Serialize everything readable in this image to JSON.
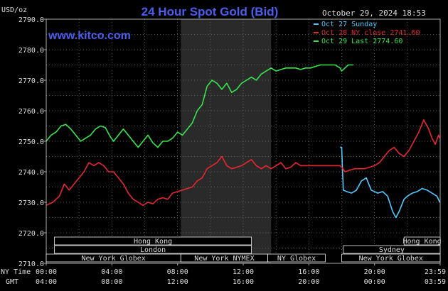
{
  "chart_data": {
    "type": "line",
    "title": "24 Hour Spot Gold (Bid)",
    "watermark": "www.kitco.com",
    "timestamp": "October 29, 2024 18:53",
    "ylabel": "USD/oz",
    "ylim": [
      2710,
      2790
    ],
    "yticks": [
      "2790.0",
      "2780.0",
      "2770.0",
      "2760.0",
      "2750.0",
      "2740.0",
      "2730.0",
      "2720.0",
      "2710.0"
    ],
    "x_row1_label": "NY Time",
    "x_row2_label": "GMT",
    "x_ticks_ny": [
      "00:00",
      "04:00",
      "08:00",
      "12:00",
      "16:00",
      "20:00",
      "23:59"
    ],
    "x_ticks_gmt": [
      "04:00",
      "08:00",
      "12:00",
      "16:00",
      "20:00",
      "00:00",
      "03:59"
    ],
    "shaded_region": {
      "from_hour": 8.2,
      "to_hour": 13.7,
      "color": "#2a2a2a"
    },
    "grid": true,
    "legend_position": "top-right",
    "sessions": [
      {
        "label": "Hong Kong",
        "start": 0.5,
        "end": 12.5
      },
      {
        "label": "Hong Kong",
        "start": 21.8,
        "end": 24
      },
      {
        "label": "London",
        "start": 0.5,
        "end": 12.5
      },
      {
        "label": "Sydney",
        "start": 18.1,
        "end": 24
      },
      {
        "label": "New York Globex",
        "start": 0,
        "end": 8.2
      },
      {
        "label": "New York NYMEX",
        "start": 8.2,
        "end": 13.5
      },
      {
        "label": "NY Globex",
        "start": 13.5,
        "end": 17
      },
      {
        "label": "New York Globex",
        "start": 18,
        "end": 24
      }
    ],
    "series": [
      {
        "name": "Oct 27 Sunday",
        "color": "#4ec9ff",
        "x": [
          17.9,
          18.0,
          18.05,
          18.1,
          18.3,
          18.6,
          18.9,
          19.2,
          19.5,
          19.8,
          20.2,
          20.5,
          20.8,
          21.1,
          21.3,
          21.5,
          21.8,
          22.0,
          22.3,
          22.6,
          22.9,
          23.2,
          23.5,
          23.8,
          23.98
        ],
        "y": [
          2748,
          2748,
          2740,
          2734,
          2733.5,
          2733,
          2734,
          2737,
          2738,
          2734,
          2733,
          2733.5,
          2732,
          2727,
          2725,
          2727,
          2731,
          2732,
          2733,
          2733.5,
          2734.5,
          2734,
          2733,
          2732,
          2730
        ]
      },
      {
        "name": "Oct 28 NY close 2741.60",
        "color": "#e8262f",
        "x": [
          0,
          0.4,
          0.8,
          1.1,
          1.4,
          1.7,
          2.0,
          2.3,
          2.6,
          2.9,
          3.2,
          3.5,
          3.8,
          4.1,
          4.4,
          4.7,
          5.0,
          5.3,
          5.6,
          5.9,
          6.2,
          6.5,
          6.8,
          7.1,
          7.4,
          7.7,
          8.0,
          8.3,
          8.6,
          8.9,
          9.2,
          9.5,
          9.8,
          10.1,
          10.4,
          10.7,
          11.0,
          11.3,
          11.6,
          11.9,
          12.2,
          12.5,
          12.8,
          13.1,
          13.4,
          13.7,
          14.0,
          14.3,
          14.6,
          14.9,
          15.2,
          15.5,
          15.8,
          16.1,
          16.4,
          16.7,
          17.0,
          17.3,
          17.6,
          17.9,
          18.0,
          18.2,
          18.5,
          18.8,
          19.1,
          19.4,
          19.7,
          20.0,
          20.3,
          20.6,
          20.9,
          21.2,
          21.5,
          21.8,
          22.1,
          22.4,
          22.7,
          23.0,
          23.3,
          23.5,
          23.7,
          23.9,
          23.98
        ],
        "y": [
          2729,
          2730,
          2732,
          2736,
          2734,
          2736,
          2738,
          2740,
          2743,
          2742,
          2743,
          2742,
          2740,
          2740,
          2738,
          2736,
          2733,
          2731,
          2730,
          2729,
          2730,
          2729.5,
          2731,
          2731.5,
          2731,
          2733,
          2733.5,
          2734,
          2734.5,
          2735,
          2737,
          2738,
          2741,
          2742,
          2743,
          2745,
          2742,
          2741,
          2741.5,
          2742,
          2743,
          2744,
          2742,
          2741,
          2742,
          2741,
          2742,
          2743,
          2741,
          2741.5,
          2743,
          2742,
          2742,
          2742,
          2742,
          2742,
          2742,
          2742,
          2742,
          2742,
          2741.5,
          2740,
          2740.5,
          2741,
          2741,
          2741,
          2741.5,
          2742,
          2743,
          2745,
          2747,
          2748,
          2746,
          2745,
          2747,
          2750,
          2753,
          2757,
          2754,
          2751,
          2749,
          2752,
          2751
        ]
      },
      {
        "name": "Oct 29 Last 2774.60",
        "color": "#36e64b",
        "x": [
          0,
          0.3,
          0.6,
          0.9,
          1.2,
          1.5,
          1.8,
          2.1,
          2.4,
          2.7,
          3.0,
          3.3,
          3.6,
          3.9,
          4.1,
          4.4,
          4.7,
          5.0,
          5.3,
          5.6,
          5.9,
          6.2,
          6.5,
          6.8,
          7.1,
          7.4,
          7.7,
          8.0,
          8.3,
          8.6,
          8.9,
          9.2,
          9.5,
          9.8,
          10.1,
          10.4,
          10.7,
          11.0,
          11.3,
          11.6,
          11.9,
          12.2,
          12.5,
          12.8,
          13.1,
          13.4,
          13.7,
          14.0,
          14.3,
          14.6,
          14.9,
          15.2,
          15.5,
          15.8,
          16.1,
          16.4,
          16.7,
          17.0,
          17.3,
          17.6,
          17.9,
          18.0,
          18.2,
          18.4,
          18.7
        ],
        "y": [
          2750,
          2752,
          2753,
          2755,
          2755.5,
          2754,
          2752,
          2750,
          2751,
          2752,
          2754,
          2755,
          2754.5,
          2751.5,
          2750,
          2752,
          2754,
          2752,
          2750,
          2748,
          2750,
          2752,
          2749.5,
          2748,
          2750,
          2750,
          2751,
          2753,
          2752,
          2754,
          2756,
          2760,
          2762,
          2768,
          2770,
          2769,
          2767,
          2769,
          2766,
          2767,
          2769,
          2770,
          2771,
          2770,
          2772,
          2773,
          2774,
          2773,
          2773.5,
          2774,
          2774,
          2774,
          2773.5,
          2774,
          2774,
          2774.5,
          2775,
          2775,
          2775,
          2775,
          2774,
          2773,
          2774,
          2775,
          2775
        ]
      }
    ]
  }
}
